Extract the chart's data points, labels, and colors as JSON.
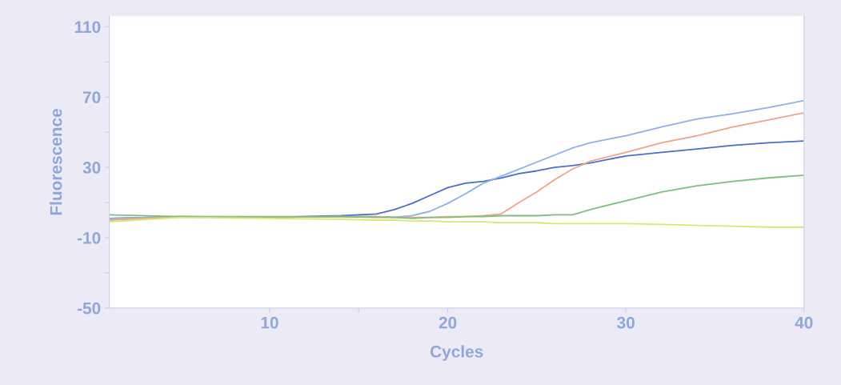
{
  "chart_data": {
    "type": "line",
    "xlabel": "Cycles",
    "ylabel": "Fluorescence",
    "x": [
      1,
      5,
      10,
      14,
      16,
      17,
      18,
      19,
      20,
      21,
      22,
      23,
      24,
      25,
      26,
      27,
      28,
      30,
      32,
      34,
      36,
      38,
      40
    ],
    "series": [
      {
        "color": "#4a6fc8",
        "values": [
          1,
          2,
          1.5,
          2.5,
          3.5,
          6,
          9.5,
          14,
          18.5,
          21,
          22,
          24,
          26.5,
          28,
          30,
          31,
          32.5,
          36.5,
          38.5,
          40.5,
          42.5,
          44,
          45
        ]
      },
      {
        "color": "#8fb0e8",
        "values": [
          1,
          2,
          1.5,
          2,
          2,
          1.6,
          2.5,
          5,
          9.5,
          15,
          21,
          25,
          29,
          33,
          37,
          41,
          44,
          48,
          53,
          57.5,
          60.5,
          64,
          68
        ]
      },
      {
        "color": "#f0a488",
        "values": [
          0,
          2,
          1.5,
          2,
          2,
          1.5,
          1.5,
          1.5,
          2,
          2,
          2.5,
          3.5,
          10,
          16,
          23,
          29,
          33.5,
          38.5,
          44,
          48,
          53,
          57,
          61
        ]
      },
      {
        "color": "#7cc07c",
        "values": [
          3,
          2,
          2,
          2,
          1.5,
          1.5,
          1,
          1.5,
          1.5,
          2,
          2,
          2.5,
          2.5,
          2.5,
          3,
          3,
          6,
          11,
          16,
          19.5,
          22,
          24,
          25.5
        ]
      },
      {
        "color": "#d6e872",
        "values": [
          -1,
          1.5,
          1,
          0.5,
          0,
          0,
          -0.5,
          -0.5,
          -1,
          -1,
          -1,
          -1.5,
          -1.5,
          -1.5,
          -2,
          -2,
          -2,
          -2,
          -2.5,
          -3,
          -3.5,
          -4,
          -4
        ]
      }
    ],
    "xlim": [
      1,
      40
    ],
    "ylim": [
      -50,
      116
    ],
    "xticks": [
      10,
      {
        "value": 15,
        "label": null
      },
      20,
      30,
      40
    ],
    "yticks": [
      -50,
      {
        "value": -30,
        "label": null
      },
      -10,
      {
        "value": 10,
        "label": null
      },
      30,
      {
        "value": 50,
        "label": null
      },
      70,
      {
        "value": 90,
        "label": null
      },
      110
    ],
    "grid": false,
    "marker": "none",
    "line_style": "solid"
  }
}
